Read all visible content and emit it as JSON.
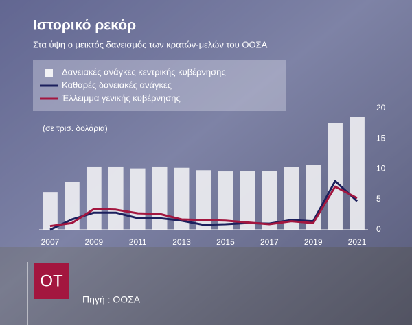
{
  "chart_data": {
    "type": "bar-line",
    "title": "Ιστορικό ρεκόρ",
    "subtitle": "Στα ύψη ο μεικτός δανεισμός των κρατών-μελών του ΟΟΣΑ",
    "y_label": "(σε τρισ. δολάρια)",
    "source": "Πηγή : ΟΟΣΑ",
    "logo": "OT",
    "categories": [
      "2007",
      null,
      "2009",
      null,
      "2011",
      null,
      "2013",
      null,
      "2015",
      null,
      "2017",
      null,
      "2019",
      null,
      "2021"
    ],
    "series": [
      {
        "name": "Δανειακές ανάγκες κεντρικής κυβέρνησης",
        "type": "bar",
        "color": "#f2f2f5",
        "values": [
          6.2,
          7.9,
          10.4,
          10.4,
          10.1,
          10.4,
          10.2,
          9.8,
          9.6,
          9.7,
          9.7,
          10.3,
          10.7,
          17.6,
          18.6
        ]
      },
      {
        "name": "Καθαρές δανειακές ανάγκες",
        "type": "line",
        "color": "#1b1f5c",
        "values": [
          0,
          1.7,
          2.8,
          2.8,
          1.9,
          1.9,
          1.5,
          0.8,
          0.9,
          1.1,
          1.0,
          1.6,
          1.4,
          8.0,
          4.7
        ]
      },
      {
        "name": "Έλλειμμα γενικής κυβέρνησης",
        "type": "line",
        "color": "#a3163f",
        "values": [
          0.6,
          1.1,
          3.4,
          3.3,
          2.7,
          2.6,
          1.7,
          1.6,
          1.5,
          1.2,
          0.9,
          1.4,
          1.1,
          7.1,
          5.2
        ]
      }
    ],
    "ylim": [
      0,
      20
    ],
    "yticks": [
      0,
      5,
      10,
      15,
      20
    ],
    "grid": false
  }
}
